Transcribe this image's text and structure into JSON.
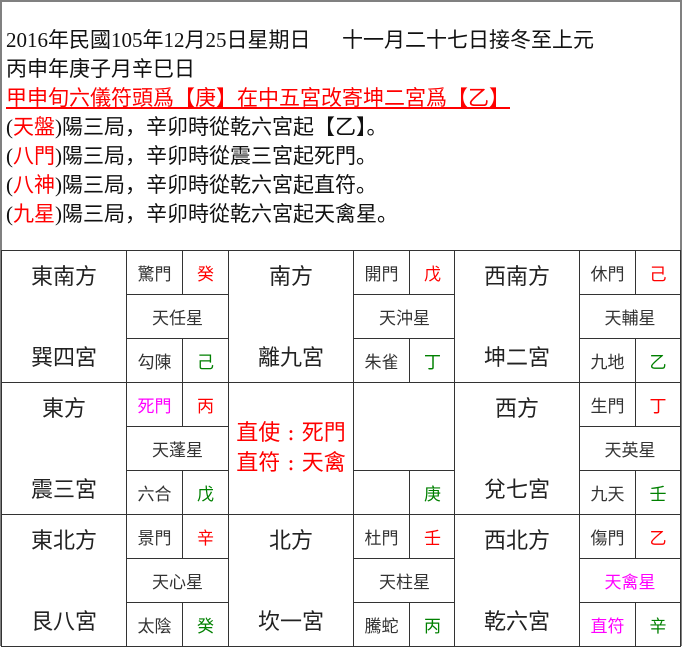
{
  "header": {
    "line1_left": "2016年民國105年12月25日星期日",
    "line1_right": "十一月二十七日接冬至上元",
    "line2": "丙申年庚子月辛巳日",
    "line3": "甲申旬六儀符頭爲【庚】在中五宮改寄坤二宮爲【乙】",
    "plates": [
      {
        "label": "(",
        "name": "天盤",
        "close": ")",
        "text": "陽三局，辛卯時從乾六宮起【乙】。"
      },
      {
        "label": "(",
        "name": "八門",
        "close": ")",
        "text": "陽三局，辛卯時從震三宮起死門。"
      },
      {
        "label": "(",
        "name": "八神",
        "close": ")",
        "text": "陽三局，辛卯時從乾六宮起直符。"
      },
      {
        "label": "(",
        "name": "九星",
        "close": ")",
        "text": "陽三局，辛卯時從乾六宮起天禽星。"
      }
    ]
  },
  "colors": {
    "heaven_stem": "#ff0000",
    "earth_stem": "#008000",
    "highlight": "#ff00ff",
    "text": "#333333"
  },
  "center": {
    "line1": "直使 : 死門",
    "line2": "直符 : 天禽",
    "ground_stem": "庚"
  },
  "palaces": [
    {
      "direction": "東南方",
      "palace": "巽四宮",
      "door": "驚門",
      "heaven_stem": "癸",
      "star": "天任星",
      "god": "勾陳",
      "earth_stem": "己"
    },
    {
      "direction": "南方",
      "palace": "離九宮",
      "door": "開門",
      "heaven_stem": "戊",
      "star": "天沖星",
      "god": "朱雀",
      "earth_stem": "丁"
    },
    {
      "direction": "西南方",
      "palace": "坤二宮",
      "door": "休門",
      "heaven_stem": "己",
      "star": "天輔星",
      "god": "九地",
      "earth_stem": "乙"
    },
    {
      "direction": "東方",
      "palace": "震三宮",
      "door": "死門",
      "door_highlight": true,
      "heaven_stem": "丙",
      "star": "天蓬星",
      "god": "六合",
      "earth_stem": "戊"
    },
    null,
    {
      "direction": "西方",
      "palace": "兌七宮",
      "door": "生門",
      "heaven_stem": "丁",
      "star": "天英星",
      "god": "九天",
      "earth_stem": "壬"
    },
    {
      "direction": "東北方",
      "palace": "艮八宮",
      "door": "景門",
      "heaven_stem": "辛",
      "star": "天心星",
      "god": "太陰",
      "earth_stem": "癸"
    },
    {
      "direction": "北方",
      "palace": "坎一宮",
      "door": "杜門",
      "heaven_stem": "壬",
      "star": "天柱星",
      "god": "騰蛇",
      "earth_stem": "丙"
    },
    {
      "direction": "西北方",
      "palace": "乾六宮",
      "door": "傷門",
      "heaven_stem": "乙",
      "star": "天禽星",
      "star_highlight": true,
      "god": "直符",
      "god_highlight": true,
      "earth_stem": "辛"
    }
  ]
}
